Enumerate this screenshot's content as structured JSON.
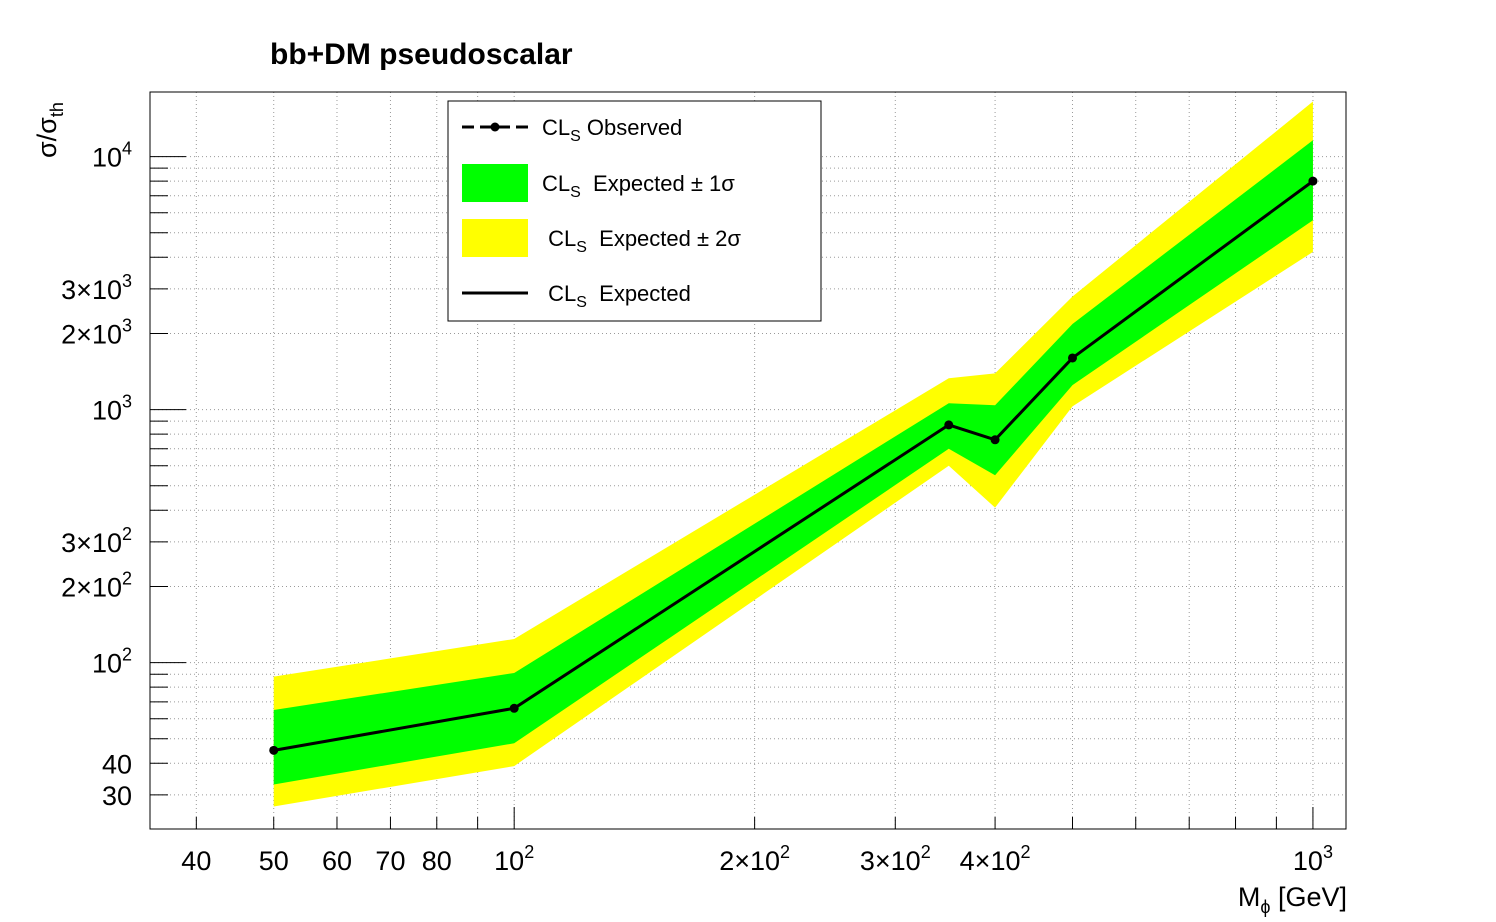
{
  "chart_data": {
    "type": "line",
    "title": "bb+DM pseudoscalar",
    "xlabel": "M_ϕ [GeV]",
    "ylabel": "σ/σ_th",
    "x_scale": "log",
    "y_scale": "log",
    "xlim": [
      35,
      1100
    ],
    "ylim": [
      22,
      18000
    ],
    "grid": true,
    "legend_position": "top-center",
    "x_tick_labels": [
      {
        "value": 40,
        "base": "40",
        "exp": ""
      },
      {
        "value": 50,
        "base": "50",
        "exp": ""
      },
      {
        "value": 60,
        "base": "60",
        "exp": ""
      },
      {
        "value": 70,
        "base": "70",
        "exp": ""
      },
      {
        "value": 80,
        "base": "80",
        "exp": ""
      },
      {
        "value": 100,
        "base": "10",
        "exp": "2"
      },
      {
        "value": 200,
        "base": "2×10",
        "exp": "2"
      },
      {
        "value": 300,
        "base": "3×10",
        "exp": "2"
      },
      {
        "value": 400,
        "base": "4×10",
        "exp": "2"
      },
      {
        "value": 1000,
        "base": "10",
        "exp": "3"
      }
    ],
    "y_tick_labels": [
      {
        "value": 30,
        "base": "30",
        "exp": ""
      },
      {
        "value": 40,
        "base": "40",
        "exp": ""
      },
      {
        "value": 100,
        "base": "10",
        "exp": "2"
      },
      {
        "value": 200,
        "base": "2×10",
        "exp": "2"
      },
      {
        "value": 300,
        "base": "3×10",
        "exp": "2"
      },
      {
        "value": 1000,
        "base": "10",
        "exp": "3"
      },
      {
        "value": 2000,
        "base": "2×10",
        "exp": "3"
      },
      {
        "value": 3000,
        "base": "3×10",
        "exp": "3"
      },
      {
        "value": 10000,
        "base": "10",
        "exp": "4"
      }
    ],
    "x": [
      50,
      100,
      350,
      400,
      500,
      1000
    ],
    "series": [
      {
        "name": "CL_S Observed",
        "style": "dashed-markers",
        "color": "#000000",
        "values": [
          45,
          66,
          870,
          760,
          1600,
          8000
        ]
      },
      {
        "name": "CL_S Expected",
        "style": "solid",
        "color": "#000000",
        "values": [
          45,
          66,
          870,
          760,
          1600,
          8000
        ]
      }
    ],
    "bands": [
      {
        "name": "CL_S Expected ± 2σ",
        "color": "#ffff00",
        "low": [
          27,
          39,
          600,
          410,
          1030,
          4200
        ],
        "high": [
          88,
          124,
          1330,
          1390,
          2800,
          16500
        ]
      },
      {
        "name": "CL_S Expected ± 1σ",
        "color": "#00ff00",
        "low": [
          33,
          48,
          700,
          550,
          1250,
          5600
        ],
        "high": [
          65,
          91,
          1060,
          1040,
          2180,
          11600
        ]
      }
    ],
    "legend": [
      {
        "key": "observed",
        "label": "CL",
        "sub": "S",
        "rest": " Observed"
      },
      {
        "key": "band1",
        "label": "CL",
        "sub": "S",
        "rest": "  Expected ± 1σ"
      },
      {
        "key": "band2",
        "label": " CL",
        "sub": "S",
        "rest": "  Expected ± 2σ"
      },
      {
        "key": "expected",
        "label": " CL",
        "sub": "S",
        "rest": "  Expected"
      }
    ]
  }
}
